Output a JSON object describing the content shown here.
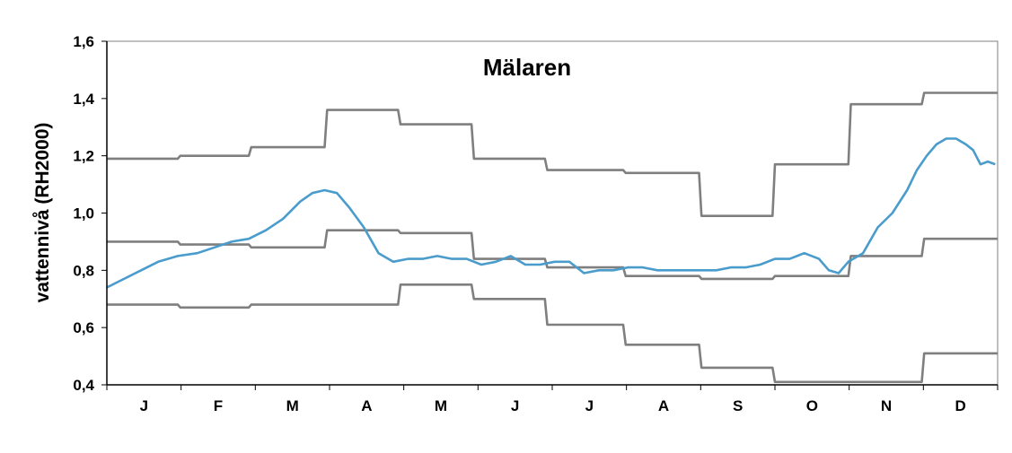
{
  "chart_data": {
    "type": "line",
    "title": "Mälaren",
    "xlabel": "",
    "ylabel": "vattennivå (RH2000)",
    "ylim": [
      0.4,
      1.6
    ],
    "yticks": [
      "0,4",
      "0,6",
      "0,8",
      "1,0",
      "1,2",
      "1,4",
      "1,6"
    ],
    "ytick_values": [
      0.4,
      0.6,
      0.8,
      1.0,
      1.2,
      1.4,
      1.6
    ],
    "categories": [
      "J",
      "F",
      "M",
      "A",
      "M",
      "J",
      "J",
      "A",
      "S",
      "O",
      "N",
      "D"
    ],
    "grid": false,
    "colors": {
      "water_level": "#4a9ccc",
      "bands": "#7f7f7f"
    },
    "series": [
      {
        "key": "upper",
        "x": [
          1,
          30,
          31,
          59,
          60,
          90,
          91,
          120,
          121,
          150,
          151,
          180,
          181,
          212,
          213,
          243,
          244,
          273,
          274,
          304,
          305,
          334,
          335,
          365
        ],
        "y": [
          1.19,
          1.19,
          1.2,
          1.2,
          1.23,
          1.23,
          1.36,
          1.36,
          1.31,
          1.31,
          1.19,
          1.19,
          1.15,
          1.15,
          1.14,
          1.14,
          0.99,
          0.99,
          1.17,
          1.17,
          1.38,
          1.38,
          1.42,
          1.42
        ]
      },
      {
        "key": "mean",
        "x": [
          1,
          30,
          31,
          59,
          60,
          90,
          91,
          120,
          121,
          150,
          151,
          180,
          181,
          212,
          213,
          243,
          244,
          273,
          274,
          304,
          305,
          334,
          335,
          365
        ],
        "y": [
          0.9,
          0.9,
          0.89,
          0.89,
          0.88,
          0.88,
          0.94,
          0.94,
          0.93,
          0.93,
          0.84,
          0.84,
          0.81,
          0.81,
          0.78,
          0.78,
          0.77,
          0.77,
          0.78,
          0.78,
          0.85,
          0.85,
          0.91,
          0.91
        ]
      },
      {
        "key": "lower",
        "x": [
          1,
          30,
          31,
          59,
          60,
          90,
          91,
          120,
          121,
          150,
          151,
          180,
          181,
          212,
          213,
          243,
          244,
          273,
          274,
          304,
          305,
          334,
          335,
          365
        ],
        "y": [
          0.68,
          0.68,
          0.67,
          0.67,
          0.68,
          0.68,
          0.68,
          0.68,
          0.75,
          0.75,
          0.7,
          0.7,
          0.61,
          0.61,
          0.54,
          0.54,
          0.46,
          0.46,
          0.41,
          0.41,
          0.41,
          0.41,
          0.51,
          0.51
        ]
      },
      {
        "key": "water_level",
        "x": [
          1,
          8,
          15,
          22,
          30,
          38,
          45,
          52,
          59,
          66,
          73,
          80,
          85,
          90,
          95,
          100,
          106,
          112,
          118,
          124,
          130,
          136,
          142,
          148,
          154,
          160,
          166,
          172,
          178,
          184,
          190,
          196,
          202,
          208,
          214,
          220,
          226,
          232,
          238,
          244,
          250,
          256,
          262,
          268,
          274,
          280,
          286,
          292,
          296,
          300,
          304,
          310,
          316,
          322,
          328,
          332,
          336,
          340,
          344,
          348,
          352,
          355,
          358,
          361,
          364
        ],
        "y": [
          0.74,
          0.77,
          0.8,
          0.83,
          0.85,
          0.86,
          0.88,
          0.9,
          0.91,
          0.94,
          0.98,
          1.04,
          1.07,
          1.08,
          1.07,
          1.02,
          0.95,
          0.86,
          0.83,
          0.84,
          0.84,
          0.85,
          0.84,
          0.84,
          0.82,
          0.83,
          0.85,
          0.82,
          0.82,
          0.83,
          0.83,
          0.79,
          0.8,
          0.8,
          0.81,
          0.81,
          0.8,
          0.8,
          0.8,
          0.8,
          0.8,
          0.81,
          0.81,
          0.82,
          0.84,
          0.84,
          0.86,
          0.84,
          0.8,
          0.79,
          0.83,
          0.86,
          0.95,
          1.0,
          1.08,
          1.15,
          1.2,
          1.24,
          1.26,
          1.26,
          1.24,
          1.22,
          1.17,
          1.18,
          1.17
        ]
      }
    ]
  }
}
